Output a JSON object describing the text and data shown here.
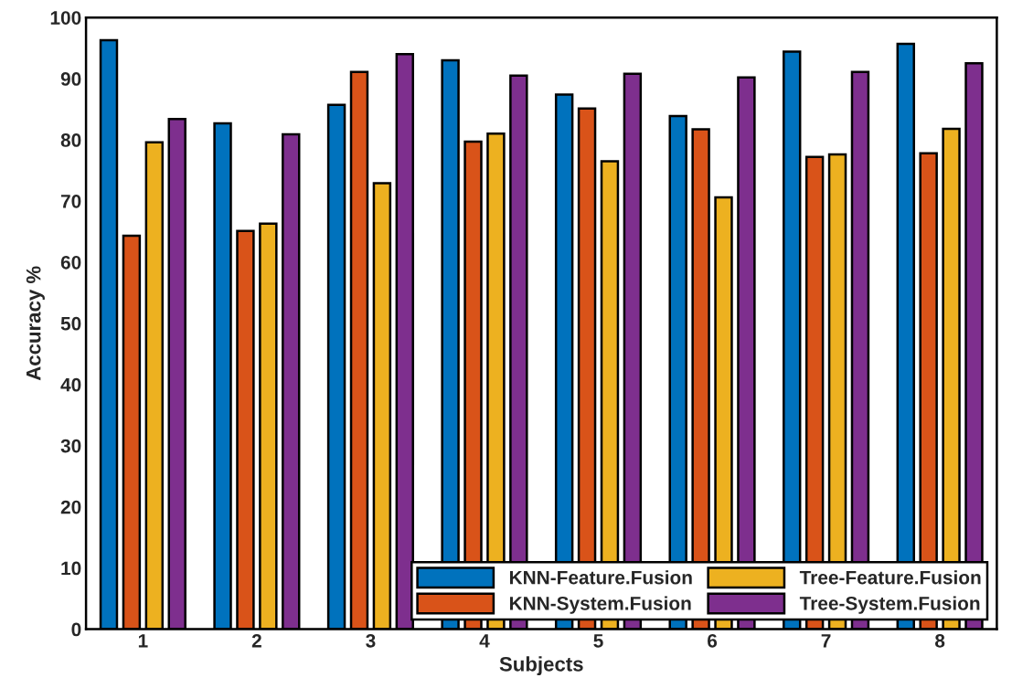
{
  "chart_data": {
    "type": "bar",
    "xlabel": "Subjects",
    "ylabel": "Accuracy %",
    "categories": [
      "1",
      "2",
      "3",
      "4",
      "5",
      "6",
      "7",
      "8"
    ],
    "series": [
      {
        "name": "KNN-Feature.Fusion",
        "color": "#0072bd",
        "values": [
          96.3,
          82.7,
          85.7,
          93.0,
          87.4,
          83.9,
          94.4,
          95.7
        ]
      },
      {
        "name": "KNN-System.Fusion",
        "color": "#d95319",
        "values": [
          64.3,
          65.1,
          91.1,
          79.7,
          85.1,
          81.7,
          77.2,
          77.8
        ]
      },
      {
        "name": "Tree-Feature.Fusion",
        "color": "#edb120",
        "values": [
          79.6,
          66.3,
          72.9,
          81.0,
          76.5,
          70.6,
          77.6,
          81.8
        ]
      },
      {
        "name": "Tree-System.Fusion",
        "color": "#7e2f8e",
        "values": [
          83.4,
          80.9,
          94.0,
          90.5,
          90.8,
          90.2,
          91.1,
          92.5
        ]
      }
    ],
    "ylim": [
      0,
      100
    ],
    "yticks": [
      0,
      10,
      20,
      30,
      40,
      50,
      60,
      70,
      80,
      90,
      100
    ],
    "grid": false,
    "legend": "bottom right"
  }
}
